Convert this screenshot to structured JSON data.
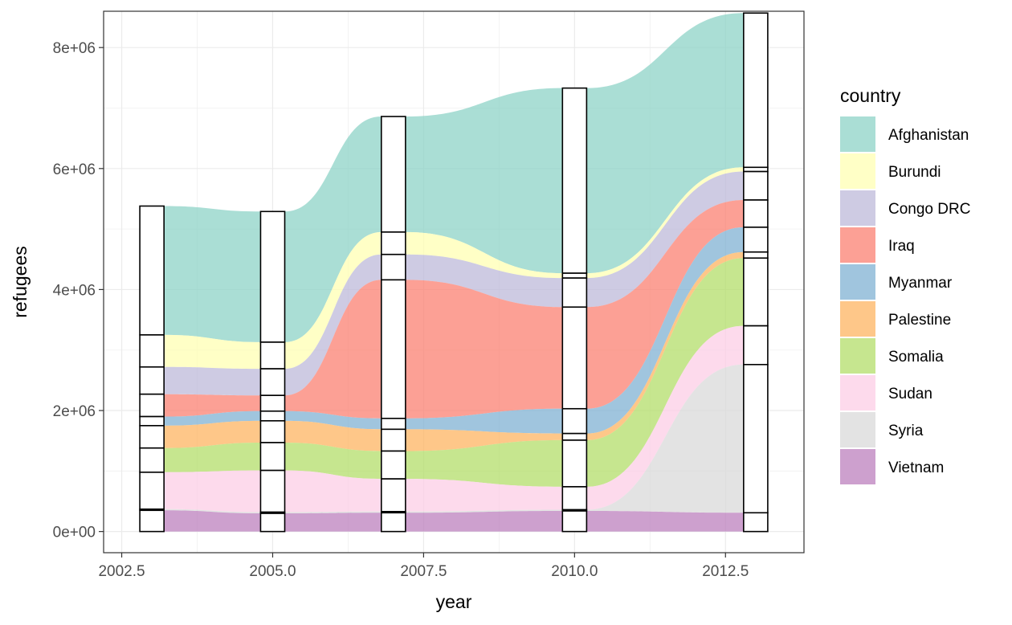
{
  "chart_data": {
    "type": "area",
    "subtype": "alluvial",
    "title": "",
    "xlabel": "year",
    "ylabel": "refugees",
    "x": [
      2003,
      2005,
      2007,
      2010,
      2013
    ],
    "xlim": [
      2002.2,
      2013.8
    ],
    "ylim": [
      -350000,
      8600000
    ],
    "x_ticks": [
      2002.5,
      2005.0,
      2007.5,
      2010.0,
      2012.5
    ],
    "x_tick_labels": [
      "2002.5",
      "2005.0",
      "2007.5",
      "2010.0",
      "2012.5"
    ],
    "y_ticks": [
      0,
      2000000,
      4000000,
      6000000,
      8000000
    ],
    "y_tick_labels": [
      "0e+00",
      "2e+06",
      "4e+06",
      "6e+06",
      "8e+06"
    ],
    "grid": true,
    "legend": {
      "title": "country",
      "position": "right"
    },
    "series": [
      {
        "name": "Afghanistan",
        "color": "#8DD3C7",
        "values": [
          2130000,
          2160000,
          1910000,
          3060000,
          2550000
        ]
      },
      {
        "name": "Burundi",
        "color": "#FFFFB3",
        "values": [
          530000,
          440000,
          370000,
          80000,
          70000
        ]
      },
      {
        "name": "Congo DRC",
        "color": "#BEBADA",
        "values": [
          450000,
          440000,
          420000,
          480000,
          470000
        ]
      },
      {
        "name": "Iraq",
        "color": "#FB8072",
        "values": [
          370000,
          260000,
          2290000,
          1680000,
          450000
        ]
      },
      {
        "name": "Myanmar",
        "color": "#80B1D3",
        "values": [
          150000,
          160000,
          180000,
          410000,
          410000
        ]
      },
      {
        "name": "Palestine",
        "color": "#FDB462",
        "values": [
          370000,
          360000,
          360000,
          110000,
          100000
        ]
      },
      {
        "name": "Somalia",
        "color": "#B3DE69",
        "values": [
          400000,
          460000,
          460000,
          770000,
          1120000
        ]
      },
      {
        "name": "Sudan",
        "color": "#FCCDE5",
        "values": [
          610000,
          690000,
          540000,
          380000,
          640000
        ]
      },
      {
        "name": "Syria",
        "color": "#D9D9D9",
        "values": [
          20000,
          20000,
          20000,
          20000,
          2450000
        ]
      },
      {
        "name": "Vietnam",
        "color": "#BC80BD",
        "values": [
          350000,
          300000,
          310000,
          340000,
          310000
        ]
      }
    ]
  }
}
